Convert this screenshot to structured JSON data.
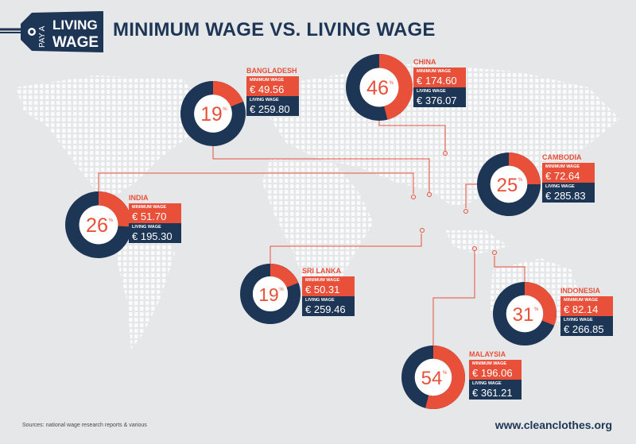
{
  "header": {
    "logo_text": [
      "PAY A",
      "LIVING",
      "WAGE"
    ],
    "title": "MINIMUM WAGE VS. LIVING WAGE"
  },
  "footer": {
    "sources": "Sources: national wage research reports & various",
    "url": "www.cleanclothes.org"
  },
  "colors": {
    "background": "#e6e7e8",
    "navy": "#1e3656",
    "red": "#e8503a",
    "map_dots": "#ffffff"
  },
  "labels": {
    "minimum": "MINIMUM WAGE",
    "living": "LIVING WAGE",
    "percent_sign": "%"
  },
  "chart_data": {
    "type": "pie",
    "variant": "donut",
    "title": "MINIMUM WAGE VS. LIVING WAGE",
    "currency": "€",
    "items": [
      {
        "country": "BANGLADESH",
        "percent": 19,
        "minimum_wage": "€ 49.56",
        "living_wage": "€ 259.80"
      },
      {
        "country": "CHINA",
        "percent": 46,
        "minimum_wage": "€ 174.60",
        "living_wage": "€ 376.07"
      },
      {
        "country": "CAMBODIA",
        "percent": 25,
        "minimum_wage": "€ 72.64",
        "living_wage": "€ 285.83"
      },
      {
        "country": "INDIA",
        "percent": 26,
        "minimum_wage": "€ 51.70",
        "living_wage": "€ 195.30"
      },
      {
        "country": "SRI LANKA",
        "percent": 19,
        "minimum_wage": "€ 50.31",
        "living_wage": "€ 259.46"
      },
      {
        "country": "INDONESIA",
        "percent": 31,
        "minimum_wage": "€ 82.14",
        "living_wage": "€ 266.85"
      },
      {
        "country": "MALAYSIA",
        "percent": 54,
        "minimum_wage": "€ 196.06",
        "living_wage": "€ 361.21"
      }
    ]
  }
}
